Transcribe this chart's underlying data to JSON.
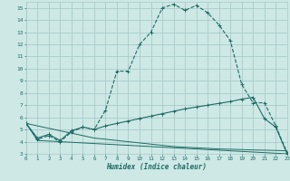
{
  "xlabel": "Humidex (Indice chaleur)",
  "bg_color": "#cde8e5",
  "grid_color": "#a8ccc9",
  "line_color": "#1e6b65",
  "x_ticks": [
    0,
    1,
    2,
    3,
    4,
    5,
    6,
    7,
    8,
    9,
    10,
    11,
    12,
    13,
    14,
    15,
    16,
    17,
    18,
    19,
    20,
    21,
    22,
    23
  ],
  "y_ticks": [
    3,
    4,
    5,
    6,
    7,
    8,
    9,
    10,
    11,
    12,
    13,
    14,
    15
  ],
  "xlim": [
    0,
    23
  ],
  "ylim": [
    3,
    15.5
  ],
  "curve1_x": [
    0,
    1,
    2,
    3,
    4,
    5,
    6,
    7,
    8,
    9,
    10,
    11,
    12,
    13,
    14,
    15,
    16,
    17,
    18,
    19,
    20,
    21,
    22,
    23
  ],
  "curve1_y": [
    5.5,
    4.2,
    4.5,
    4.0,
    4.8,
    5.2,
    5.0,
    6.6,
    9.8,
    9.8,
    12.0,
    13.0,
    15.0,
    15.3,
    14.8,
    15.2,
    14.6,
    13.6,
    12.3,
    8.7,
    7.2,
    7.2,
    5.3,
    3.1
  ],
  "curve2_x": [
    0,
    1,
    2,
    3,
    4,
    5,
    6,
    7,
    8,
    9,
    10,
    11,
    12,
    13,
    14,
    15,
    16,
    17,
    18,
    19,
    20,
    21,
    22,
    23
  ],
  "curve2_y": [
    5.5,
    4.3,
    4.6,
    4.1,
    4.9,
    5.2,
    5.0,
    5.3,
    5.5,
    5.7,
    5.9,
    6.1,
    6.3,
    6.5,
    6.7,
    6.85,
    7.0,
    7.15,
    7.3,
    7.5,
    7.65,
    5.9,
    5.2,
    3.0
  ],
  "curve3_x": [
    0,
    1,
    2,
    3,
    4,
    5,
    6,
    7,
    8,
    9,
    10,
    11,
    12,
    13,
    14,
    15,
    16,
    17,
    18,
    19,
    20,
    21,
    22,
    23
  ],
  "curve3_y": [
    5.5,
    5.3,
    5.1,
    4.9,
    4.7,
    4.5,
    4.3,
    4.2,
    4.1,
    4.0,
    3.9,
    3.8,
    3.7,
    3.6,
    3.55,
    3.5,
    3.45,
    3.4,
    3.38,
    3.35,
    3.32,
    3.3,
    3.28,
    3.25
  ],
  "curve4_x": [
    0,
    1,
    23
  ],
  "curve4_y": [
    5.5,
    4.1,
    3.0
  ]
}
